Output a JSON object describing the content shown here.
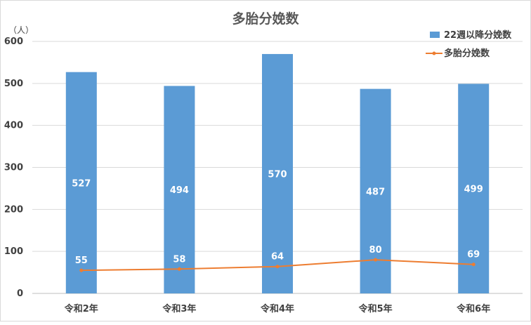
{
  "chart_data": {
    "type": "bar",
    "title": "多胎分娩数",
    "unit_label": "（人）",
    "categories": [
      "令和2年",
      "令和3年",
      "令和4年",
      "令和5年",
      "令和6年"
    ],
    "ylim": [
      0,
      600
    ],
    "yticks": [
      0,
      100,
      200,
      300,
      400,
      500,
      600
    ],
    "grid": true,
    "legend_position": "top-right",
    "series": [
      {
        "name": "22週以降分娩数",
        "type": "bar",
        "color": "#5B9BD5",
        "values": [
          527,
          494,
          570,
          487,
          499
        ]
      },
      {
        "name": "多胎分娩数",
        "type": "line",
        "color": "#ED7D31",
        "values": [
          55,
          58,
          64,
          80,
          69
        ]
      }
    ]
  }
}
